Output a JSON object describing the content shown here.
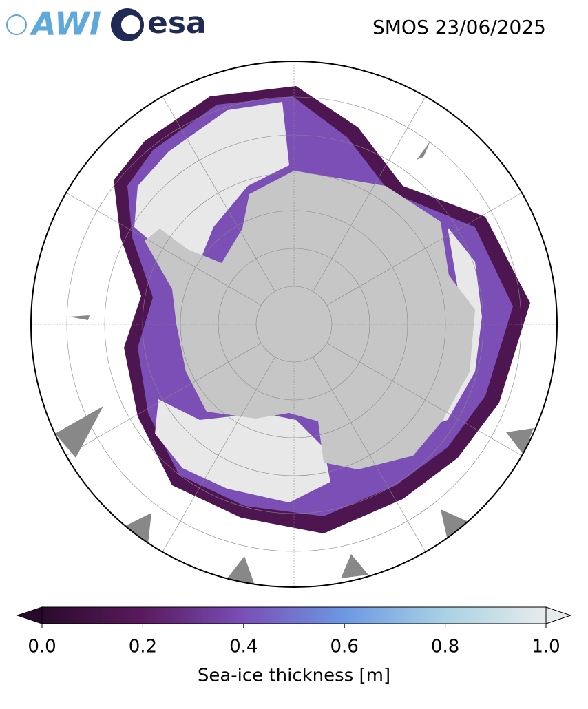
{
  "logos": {
    "awi": "AWI",
    "esa": "esa"
  },
  "title": "SMOS 23/06/2025",
  "colorbar": {
    "label": "Sea-ice thickness [m]",
    "lim": [
      0,
      1
    ],
    "ticks": [
      {
        "value": 0,
        "label": "0.0"
      },
      0.2,
      0.4,
      0.6,
      0.8,
      {
        "value": 1,
        "label": "1.0"
      }
    ],
    "colors": [
      "#2a0a2c",
      "#5a1a5e",
      "#7a4fb8",
      "#6c98e4",
      "#a9d2e4",
      "#e6ecec"
    ]
  }
}
